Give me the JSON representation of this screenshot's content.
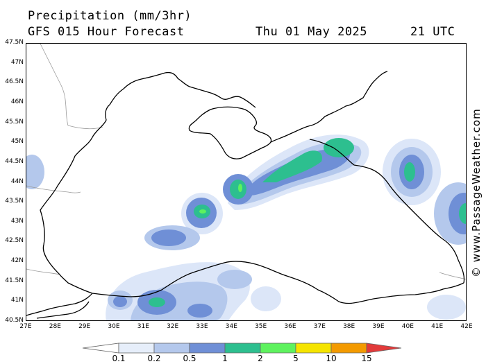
{
  "header": {
    "title": "Precipitation (mm/3hr)",
    "subtitle": "GFS 015 Hour Forecast",
    "date": "Thu 01 May 2025",
    "time": "21 UTC"
  },
  "credit": "© www.PassageWeather.com",
  "map": {
    "lat_labels": [
      "47.5N",
      "47N",
      "46.5N",
      "46N",
      "45.5N",
      "45N",
      "44.5N",
      "44N",
      "43.5N",
      "43N",
      "42.5N",
      "42N",
      "41.5N",
      "41N",
      "40.5N"
    ],
    "lon_labels": [
      "27E",
      "28E",
      "29E",
      "30E",
      "31E",
      "32E",
      "33E",
      "34E",
      "35E",
      "36E",
      "37E",
      "38E",
      "39E",
      "40E",
      "41E",
      "42E"
    ],
    "lat_range": [
      40.5,
      47.5
    ],
    "lon_range": [
      27,
      42
    ]
  },
  "legend": {
    "labels": [
      "0.1",
      "0.2",
      "0.5",
      "1",
      "2",
      "5",
      "10",
      "15"
    ],
    "colors": [
      "#e6eefa",
      "#b4c8ec",
      "#6f8fd6",
      "#2dbf8f",
      "#5ef25e",
      "#f5e400",
      "#f39a00",
      "#e23a3a"
    ]
  },
  "colors": {
    "level1": "#dce6f8",
    "level2": "#b4c8ec",
    "level3": "#6f8fd6",
    "level4": "#2dbf8f",
    "level5": "#5ef25e",
    "coast": "#000000",
    "border": "#9a9a9a"
  }
}
